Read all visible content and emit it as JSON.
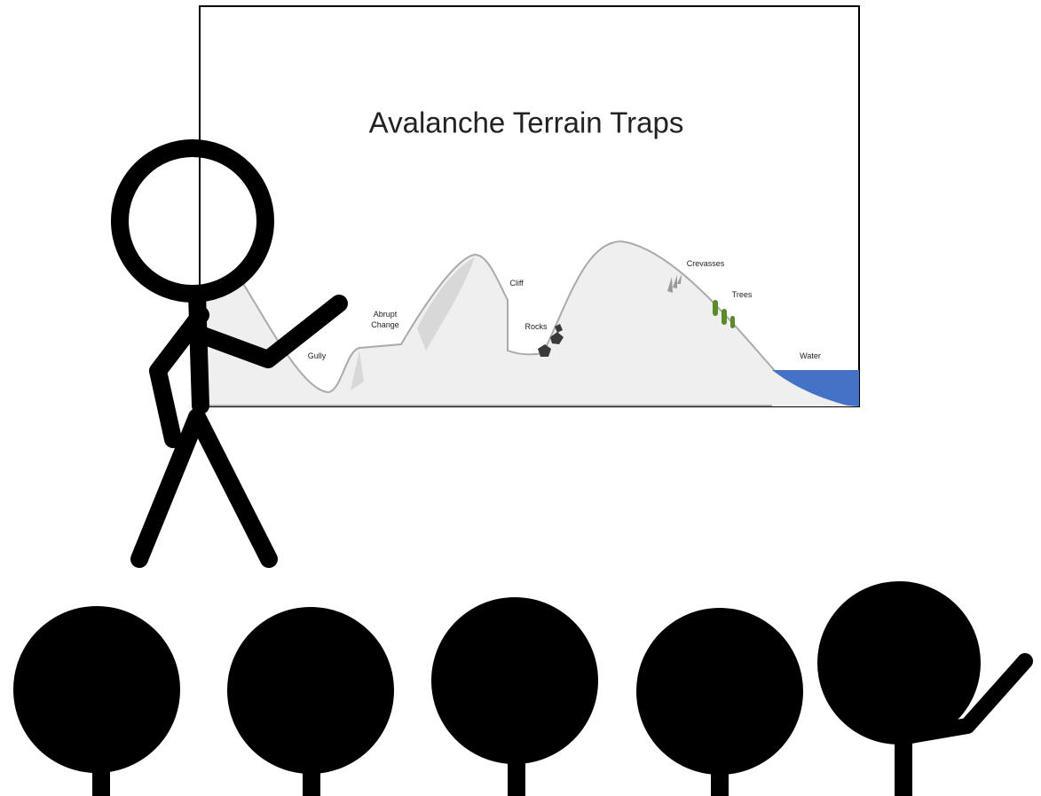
{
  "slide": {
    "title": "Avalanche Terrain Traps",
    "terrain_labels": [
      [
        "Gully"
      ],
      [
        "Abrupt",
        "Change"
      ],
      [
        "Cliff"
      ],
      [
        "Rocks"
      ],
      [
        "Crevasses"
      ],
      [
        "Trees"
      ],
      [
        "Water"
      ]
    ]
  }
}
